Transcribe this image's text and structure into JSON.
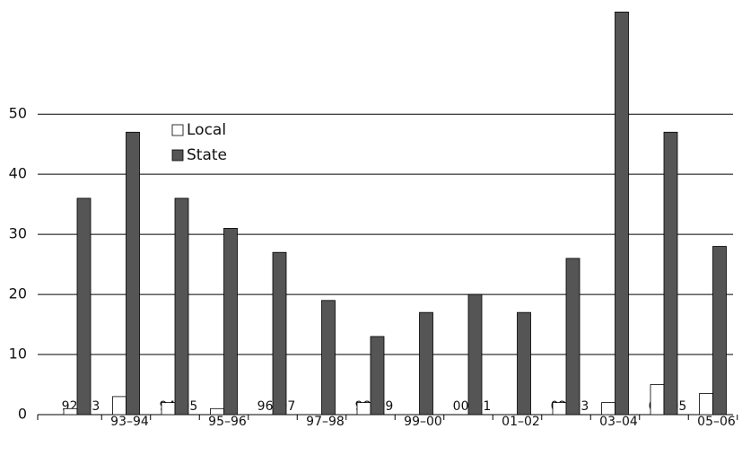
{
  "chart_data": {
    "type": "bar",
    "categories": [
      "92–93",
      "93–94",
      "94–95",
      "95–96",
      "96–97",
      "97–98",
      "98–99",
      "99–00",
      "00–01",
      "01–02",
      "02–03",
      "03–04",
      "04–05",
      "05–06"
    ],
    "series": [
      {
        "name": "Local",
        "color": "#ffffff",
        "values": [
          1,
          3,
          2,
          1,
          0,
          0,
          2,
          0,
          0,
          0,
          2,
          2,
          5,
          3.5
        ]
      },
      {
        "name": "State",
        "color": "#555555",
        "values": [
          36,
          47,
          36,
          31,
          27,
          19,
          13,
          17,
          20,
          17,
          26,
          67,
          47,
          28
        ]
      }
    ],
    "ylim": [
      0,
      69
    ],
    "yticks": [
      0,
      10,
      20,
      30,
      40,
      50
    ],
    "grid": true,
    "legend": "top-left"
  }
}
